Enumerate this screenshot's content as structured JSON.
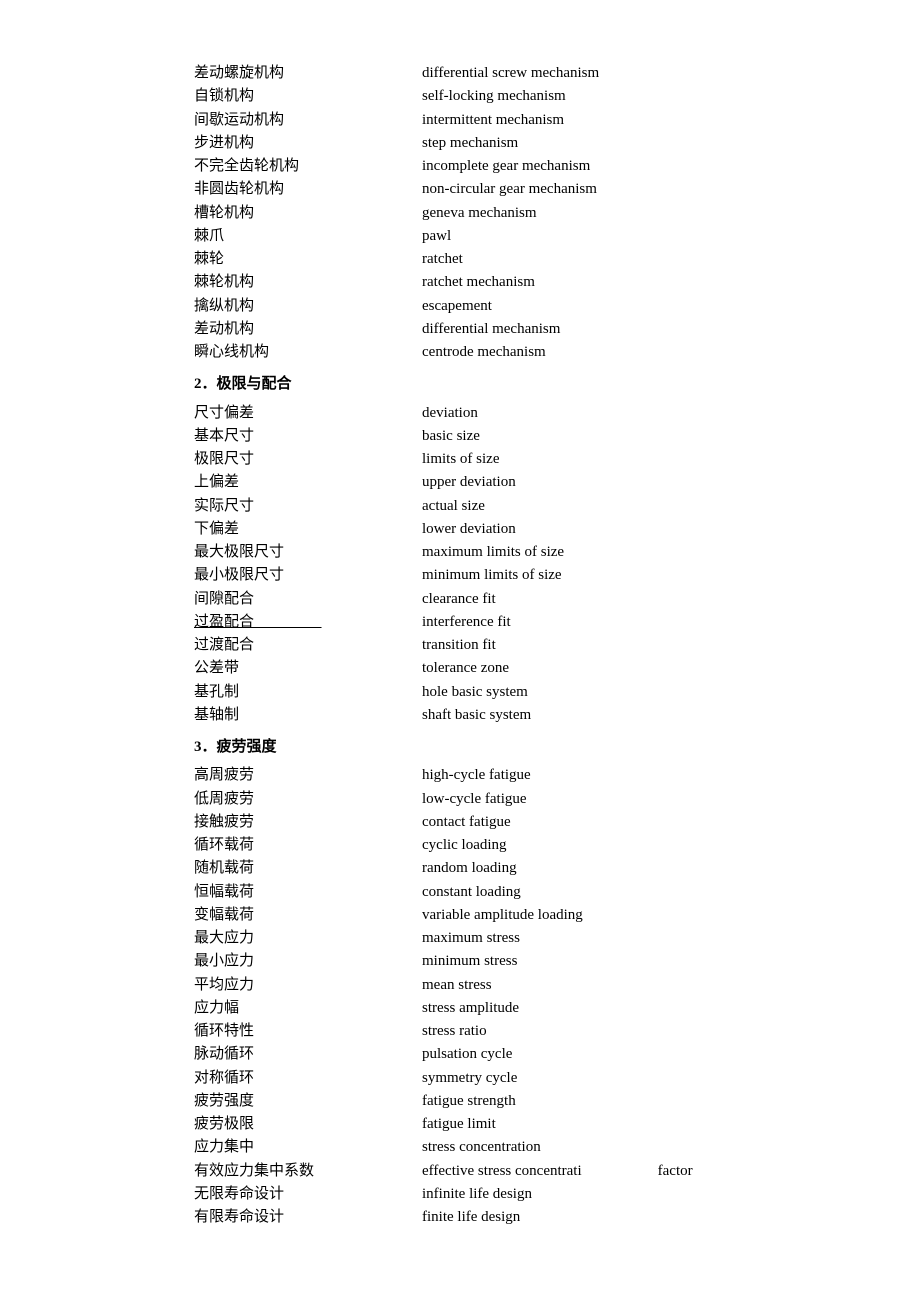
{
  "sections": [
    {
      "heading": null,
      "terms": [
        {
          "zh": "差动螺旋机构",
          "en": "differential screw mechanism"
        },
        {
          "zh": "自锁机构",
          "en": "self-locking mechanism"
        },
        {
          "zh": "间歇运动机构",
          "en": "intermittent mechanism"
        },
        {
          "zh": "步进机构",
          "en": "step mechanism"
        },
        {
          "zh": "不完全齿轮机构",
          "en": "incomplete gear mechanism"
        },
        {
          "zh": "非圆齿轮机构",
          "en": "non-circular gear mechanism"
        },
        {
          "zh": "槽轮机构",
          "en": "geneva mechanism"
        },
        {
          "zh": "棘爪",
          "en": "pawl"
        },
        {
          "zh": "棘轮",
          "en": "ratchet"
        },
        {
          "zh": "棘轮机构",
          "en": "ratchet mechanism"
        },
        {
          "zh": "擒纵机构",
          "en": "escapement"
        },
        {
          "zh": "差动机构",
          "en": "differential mechanism"
        },
        {
          "zh": "瞬心线机构",
          "en": "centrode mechanism"
        }
      ]
    },
    {
      "heading": "2．极限与配合",
      "terms": [
        {
          "zh": "尺寸偏差",
          "en": "deviation"
        },
        {
          "zh": "基本尺寸",
          "en": "basic size"
        },
        {
          "zh": "极限尺寸",
          "en": "limits of size"
        },
        {
          "zh": "上偏差",
          "en": "upper deviation"
        },
        {
          "zh": "实际尺寸",
          "en": "actual size"
        },
        {
          "zh": "下偏差",
          "en": "lower deviation"
        },
        {
          "zh": "最大极限尺寸",
          "en": "maximum limits of size"
        },
        {
          "zh": "最小极限尺寸",
          "en": "minimum limits of size"
        },
        {
          "zh": "间隙配合",
          "en": "clearance fit"
        },
        {
          "zh": "过盈配合",
          "en": "interference fit",
          "zh_underline": true
        },
        {
          "zh": "过渡配合",
          "en": "transition fit"
        },
        {
          "zh": "公差带",
          "en": "tolerance zone"
        },
        {
          "zh": "基孔制",
          "en": "hole basic system"
        },
        {
          "zh": "基轴制",
          "en": "shaft basic system"
        }
      ]
    },
    {
      "heading": "3．疲劳强度",
      "terms": [
        {
          "zh": "高周疲劳",
          "en": "high-cycle fatigue"
        },
        {
          "zh": "低周疲劳",
          "en": "low-cycle fatigue"
        },
        {
          "zh": "接触疲劳",
          "en": "contact fatigue"
        },
        {
          "zh": "循环载荷",
          "en": "cyclic loading"
        },
        {
          "zh": "随机载荷",
          "en": "random loading"
        },
        {
          "zh": "恒幅载荷",
          "en": "constant loading"
        },
        {
          "zh": "变幅载荷",
          "en": "variable amplitude loading"
        },
        {
          "zh": "最大应力",
          "en": "maximum stress"
        },
        {
          "zh": "最小应力",
          "en": "minimum stress"
        },
        {
          "zh": "平均应力",
          "en": "mean stress"
        },
        {
          "zh": "应力幅",
          "en": "stress amplitude"
        },
        {
          "zh": "循环特性",
          "en": "stress ratio"
        },
        {
          "zh": "脉动循环",
          "en": "pulsation cycle"
        },
        {
          "zh": "对称循环",
          "en": "symmetry cycle"
        },
        {
          "zh": "疲劳强度",
          "en": "fatigue strength"
        },
        {
          "zh": "疲劳极限",
          "en": "fatigue limit"
        },
        {
          "zh": "应力集中",
          "en": "stress concentration"
        },
        {
          "zh": "有效应力集中系数",
          "en": "effective stress concentrati",
          "en_extra": "factor"
        },
        {
          "zh": "无限寿命设计",
          "en": "infinite life design"
        },
        {
          "zh": "有限寿命设计",
          "en": "finite life design"
        }
      ]
    }
  ]
}
